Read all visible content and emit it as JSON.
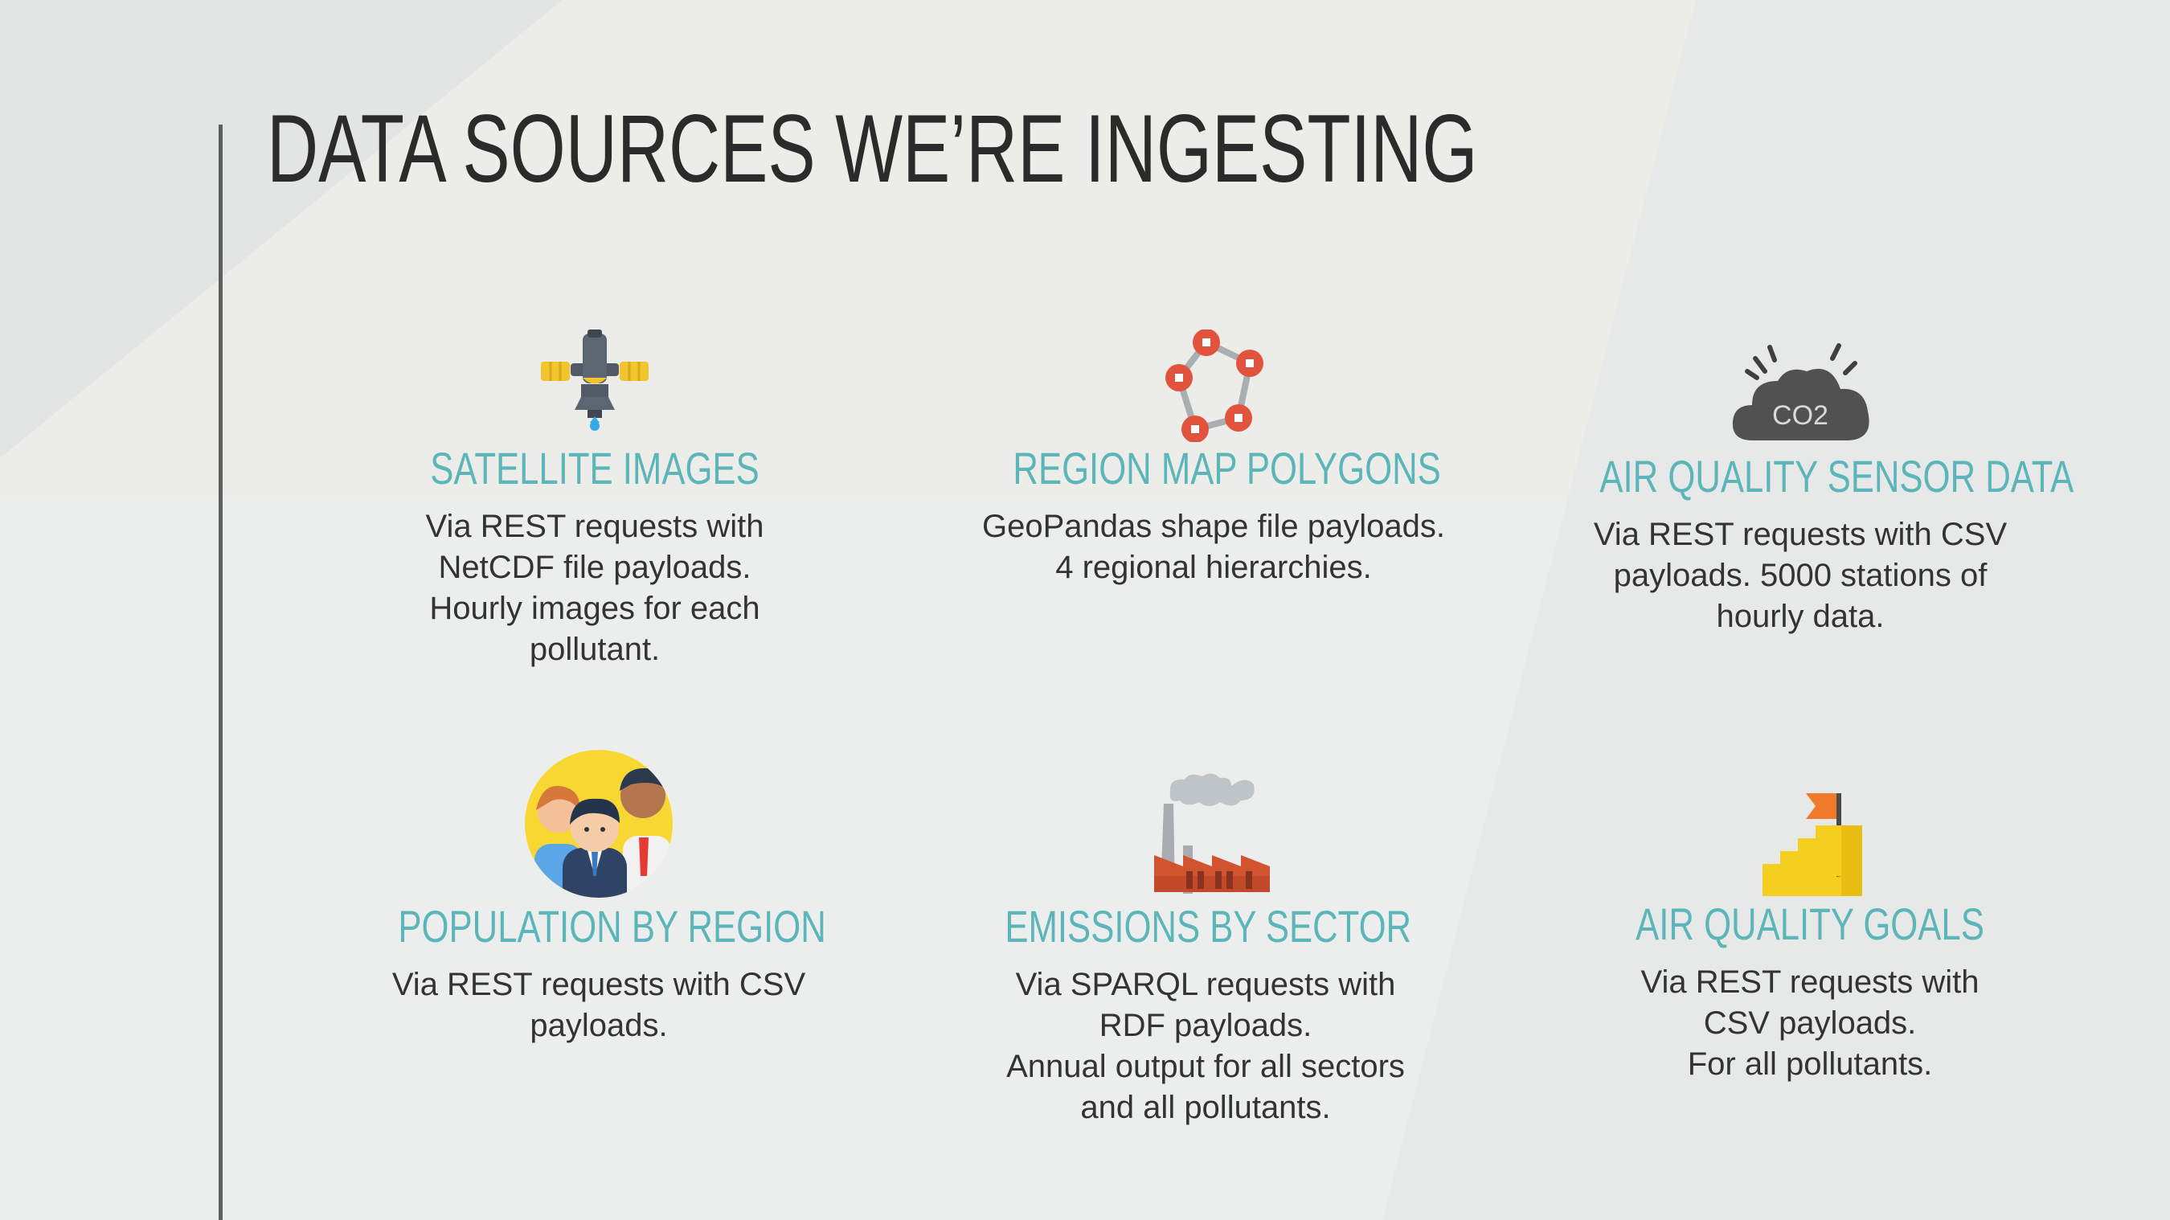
{
  "slide": {
    "title": "DATA SOURCES WE’RE INGESTING"
  },
  "cards": [
    {
      "heading": "SATELLITE IMAGES",
      "description": "Via REST requests with\nNetCDF file payloads.\nHourly images for each\npollutant.",
      "icon": "satellite-icon"
    },
    {
      "heading": "REGION MAP POLYGONS",
      "description": "GeoPandas shape file payloads.\n4 regional hierarchies.",
      "icon": "polygon-network-icon"
    },
    {
      "heading": "AIR QUALITY SENSOR DATA",
      "description": "Via REST requests with CSV\npayloads. 5000 stations of\nhourly data.",
      "icon": "co2-cloud-icon",
      "icon_label": "CO2"
    },
    {
      "heading": "POPULATION BY REGION",
      "description": "Via REST requests with CSV\npayloads.",
      "icon": "people-group-icon"
    },
    {
      "heading": "EMISSIONS BY SECTOR",
      "description": "Via SPARQL requests with\nRDF payloads.\nAnnual output for all sectors\nand all pollutants.",
      "icon": "factory-icon"
    },
    {
      "heading": "AIR QUALITY GOALS",
      "description": "Via REST requests with\nCSV payloads.\nFor all pollutants.",
      "icon": "stairs-flag-icon"
    }
  ],
  "colors": {
    "heading": "#5bb5b9",
    "title": "#2b2b2b",
    "body_text": "#333333",
    "background": "#eceeed"
  }
}
